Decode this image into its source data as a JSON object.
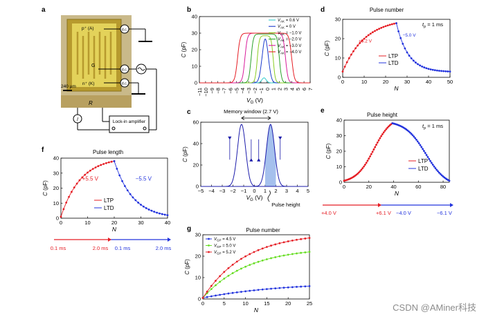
{
  "panel_a": {
    "letter": "a",
    "terminal_p": "p⁺ (A)",
    "terminal_g": "G",
    "terminal_n": "n⁺ (K)",
    "scale_bar": "240 μm",
    "resistor": "R",
    "current": "I",
    "source_dc": "d.c.",
    "amplifier": "Lock-in amplifier",
    "colors": {
      "substrate": "#c9b98a",
      "device": "#b79a2e",
      "pad": "#e3d25a"
    }
  },
  "chart_data": [
    {
      "id": "b",
      "letter": "b",
      "type": "line",
      "title": "",
      "xlabel_main": "V",
      "xlabel_sub": "G",
      "xlabel_unit": " (V)",
      "ylabel": "C (pF)",
      "xlim": [
        -11,
        7
      ],
      "ylim": [
        0,
        40
      ],
      "xticks": [
        -11,
        -10,
        -9,
        -8,
        -7,
        -6,
        -5,
        -4,
        -3,
        -2,
        -1,
        0,
        1,
        2,
        3,
        4,
        5,
        6,
        7
      ],
      "yticks": [
        0,
        10,
        20,
        30,
        40
      ],
      "series": [
        {
          "name": "0.6 V",
          "color": "#33cccc",
          "kind": "peak",
          "center": -0.5,
          "height": 3,
          "width": 0.35
        },
        {
          "name": "0 V",
          "color": "#1a3acc",
          "kind": "peak",
          "center": -0.3,
          "height": 26.5,
          "width": 0.5
        },
        {
          "name": "−1.0 V",
          "color": "#88cc22",
          "kind": "plateau",
          "left": -1.6,
          "right": 1.0,
          "height": 28.5,
          "soft": 0.5
        },
        {
          "name": "−2.0 V",
          "color": "#2aa12a",
          "kind": "plateau",
          "left": -2.6,
          "right": 2.0,
          "height": 29.5,
          "soft": 0.55
        },
        {
          "name": "−3.0 V",
          "color": "#d81b9a",
          "kind": "plateau",
          "left": -3.6,
          "right": 3.0,
          "height": 30,
          "soft": 0.6
        },
        {
          "name": "−4.0 V",
          "color": "#e51c23",
          "kind": "plateau",
          "left": -4.8,
          "right": 4.0,
          "height": 30,
          "soft": 0.65
        }
      ],
      "legend_prefix": "V",
      "legend_sub": "AK",
      "legend_eq": " = "
    },
    {
      "id": "c",
      "letter": "c",
      "type": "line",
      "title": "Memory window (2.7 V)",
      "xlabel_main": "V",
      "xlabel_sub": "G",
      "xlabel_unit": " (V)",
      "ylabel": "C (pF)",
      "xlim": [
        -5,
        5
      ],
      "ylim": [
        0,
        60
      ],
      "xticks": [
        -5,
        -4,
        -3,
        -2,
        -1,
        0,
        1,
        2,
        3,
        4,
        5
      ],
      "yticks": [
        0,
        20,
        40,
        60
      ],
      "series": [
        {
          "name": "backward sweep",
          "color": "#1a1aaa",
          "kind": "peak",
          "center": -1.2,
          "height": 58,
          "width": 0.38
        },
        {
          "name": "forward sweep",
          "color": "#1a1aaa",
          "kind": "peak",
          "center": 1.5,
          "height": 58,
          "width": 0.38
        }
      ],
      "annotation": "Pulse height",
      "shade": [
        1.0,
        2.0
      ]
    },
    {
      "id": "d",
      "letter": "d",
      "type": "scatter-line",
      "title": "Pulse number",
      "xlabel": "N",
      "ylabel": "C (pF)",
      "xlim": [
        0,
        50
      ],
      "ylim": [
        0,
        30
      ],
      "xticks": [
        0,
        10,
        20,
        30,
        40,
        50
      ],
      "yticks": [
        0,
        10,
        20,
        30
      ],
      "tp_label": "t",
      "tp_sub": "p",
      "tp_value": " = 1 ms",
      "series": [
        {
          "name": "LTP",
          "color": "#e51c23",
          "kind": "rise",
          "x0": 0,
          "x1": 25,
          "y0": 3,
          "y1": 28,
          "shape": 0.55,
          "n": 26
        },
        {
          "name": "LTD",
          "color": "#2233dd",
          "kind": "decay",
          "x0": 25,
          "x1": 50,
          "y0": 28,
          "y1": 3,
          "tau": 5.5,
          "n": 26
        }
      ],
      "labels": [
        "+5.2 V",
        "−5.0 V"
      ]
    },
    {
      "id": "e",
      "letter": "e",
      "type": "scatter-line",
      "title": "Pulse height",
      "xlabel": "N",
      "ylabel": "C (pF)",
      "xlim": [
        0,
        85
      ],
      "ylim": [
        0,
        40
      ],
      "xticks": [
        0,
        20,
        40,
        60,
        80
      ],
      "yticks": [
        0,
        10,
        20,
        30,
        40
      ],
      "tp_label": "t",
      "tp_sub": "p",
      "tp_value": " = 1 ms",
      "series": [
        {
          "name": "LTP",
          "color": "#e51c23",
          "kind": "sigmoid",
          "x0": 0,
          "x1": 39,
          "y0": 1,
          "y1": 38,
          "mid": 24,
          "k": 0.14,
          "n": 40
        },
        {
          "name": "LTD",
          "color": "#2233dd",
          "kind": "sigmoid",
          "x0": 39,
          "x1": 85,
          "y0": 38,
          "y1": 1,
          "mid": 66,
          "k": 0.12,
          "n": 46
        }
      ],
      "arrow_labels": [
        "+4.0 V",
        "+6.1 V",
        "−4.0 V",
        "−6.1 V"
      ]
    },
    {
      "id": "f",
      "letter": "f",
      "type": "scatter-line",
      "title": "Pulse length",
      "xlabel": "N",
      "ylabel": "C (pF)",
      "xlim": [
        0,
        40
      ],
      "ylim": [
        0,
        40
      ],
      "xticks": [
        0,
        10,
        20,
        30,
        40
      ],
      "yticks": [
        0,
        10,
        20,
        30,
        40
      ],
      "series": [
        {
          "name": "LTP",
          "color": "#e51c23",
          "kind": "rise",
          "x0": 0,
          "x1": 20,
          "y0": 1,
          "y1": 38,
          "shape": 0.45,
          "n": 21
        },
        {
          "name": "LTD",
          "color": "#2233dd",
          "kind": "decay",
          "x0": 20,
          "x1": 40,
          "y0": 38,
          "y1": 2,
          "tau": 7,
          "n": 21
        }
      ],
      "labels": [
        "+5.5 V",
        "−5.5 V"
      ],
      "arrow_labels": [
        "0.1 ms",
        "2.0 ms",
        "0.1 ms",
        "2.0 ms"
      ]
    },
    {
      "id": "g",
      "letter": "g",
      "type": "scatter-line",
      "title": "Pulse number",
      "xlabel": "N",
      "ylabel": "C (pF)",
      "xlim": [
        0,
        25
      ],
      "ylim": [
        0,
        30
      ],
      "xticks": [
        0,
        5,
        10,
        15,
        20,
        25
      ],
      "yticks": [
        0,
        10,
        20,
        30
      ],
      "legend_prefix": "V",
      "legend_sub": "GP",
      "legend_eq": " = ",
      "series": [
        {
          "name": "4.5 V",
          "color": "#2233dd",
          "kind": "rise",
          "x0": 0,
          "x1": 25,
          "y0": 0.5,
          "y1": 6,
          "shape": 0.9,
          "n": 26
        },
        {
          "name": "5.0 V",
          "color": "#66dd22",
          "kind": "rise",
          "x0": 0,
          "x1": 25,
          "y0": 0.5,
          "y1": 22,
          "shape": 0.55,
          "n": 26
        },
        {
          "name": "5.2 V",
          "color": "#e51c23",
          "kind": "rise",
          "x0": 0,
          "x1": 25,
          "y0": 0.5,
          "y1": 28.5,
          "shape": 0.5,
          "n": 26
        }
      ]
    }
  ],
  "watermark": "CSDN @AMiner科技"
}
